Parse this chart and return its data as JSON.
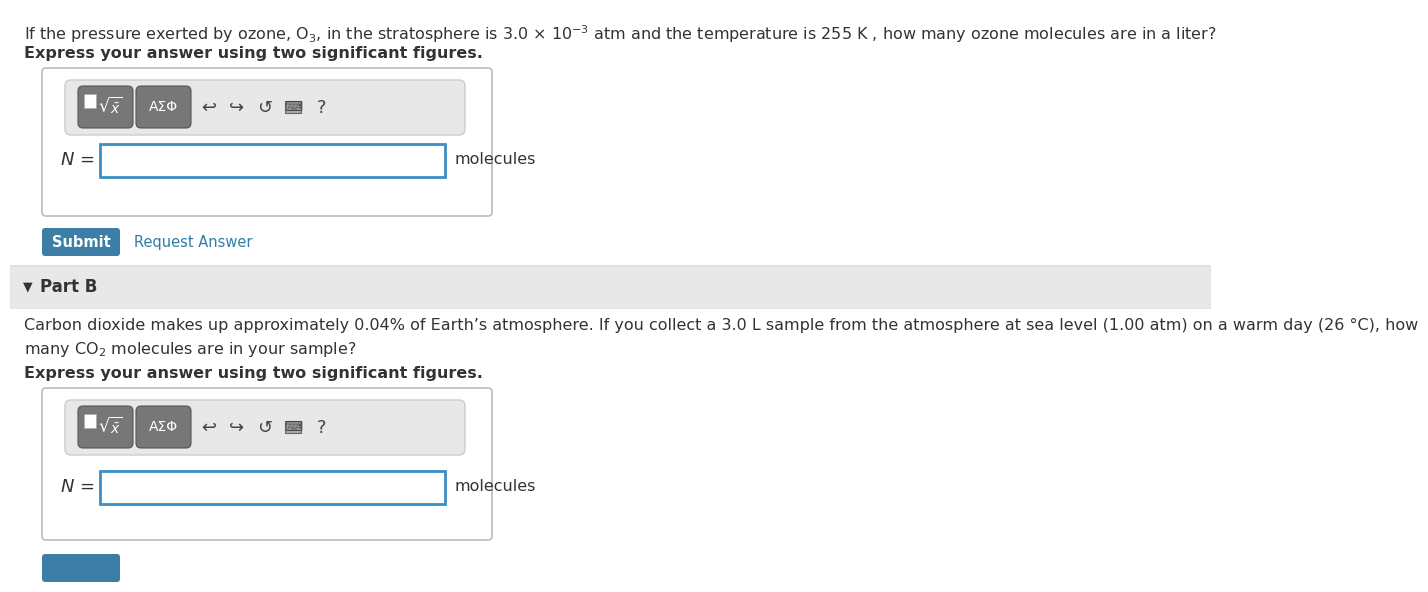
{
  "white": "#ffffff",
  "light_gray_bg": "#f0f0f0",
  "part_b_header_bg": "#e8e8e8",
  "title_text_line1": "If the pressure exerted by ozone, O$_3$, in the stratosphere is 3.0 × 10$^{-3}$ atm and the temperature is 255 K , how many ozone molecules are in a liter?",
  "bold_text_1": "Express your answer using two significant figures.",
  "n_label_italic": "$N$ =",
  "molecules_label": "molecules",
  "submit_text": "Submit",
  "request_answer_text": "Request Answer",
  "part_b_header": "Part B",
  "part_b_line1": "Carbon dioxide makes up approximately 0.04% of Earth’s atmosphere. If you collect a 3.0 L sample from the atmosphere at sea level (1.00 atm) on a warm day (26 °C), how",
  "part_b_line2": "many CO$_2$ molecules are in your sample?",
  "bold_text_2": "Express your answer using two significant figures.",
  "submit_bg": "#3d7ea6",
  "submit_fg": "#ffffff",
  "request_answer_color": "#2e7ea6",
  "outer_box_border": "#bbbbbb",
  "input_border": "#3a8fc4",
  "btn_gray": "#888888",
  "text_color": "#333333",
  "icon_color": "#444444",
  "toolbar_bg": "#e8e8e8",
  "toolbar_border": "#cccccc",
  "part_b_triangle_color": "#333333",
  "separator_color": "#dddddd",
  "bottom_bar_color": "#3d7ea6"
}
